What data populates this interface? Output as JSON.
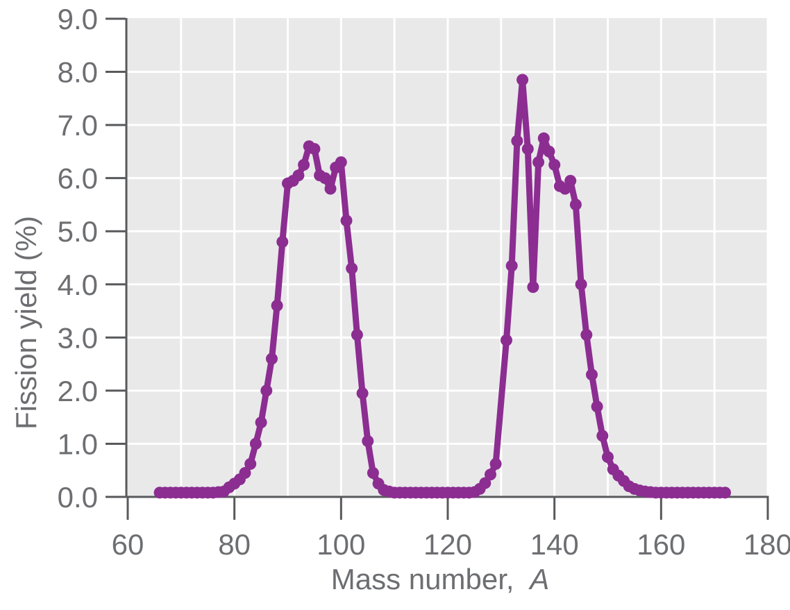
{
  "figure": {
    "xlabel_main": "Mass number,",
    "xlabel_var": "A",
    "ylabel": "Fission yield (%)",
    "x_tick_labels": [
      "60",
      "80",
      "100",
      "120",
      "140",
      "160",
      "180"
    ],
    "y_tick_labels": [
      "0.0",
      "1.0",
      "2.0",
      "3.0",
      "4.0",
      "5.0",
      "6.0",
      "7.0",
      "8.0",
      "9.0"
    ],
    "colors": {
      "curve": "#8c2d91",
      "plot_background": "#e9e9ea",
      "gridline": "#ffffff",
      "axis": "#58595b",
      "tick_label": "#6d6e71"
    }
  },
  "chart_data": {
    "type": "line",
    "title": "",
    "xlabel": "Mass number, A",
    "ylabel": "Fission yield (%)",
    "xlim": [
      60,
      180
    ],
    "ylim": [
      0,
      9.0
    ],
    "x_tick_step": 20,
    "y_tick_step": 1.0,
    "grid": true,
    "legend": false,
    "marker": "circle",
    "series": [
      {
        "name": "fission-yield-percent-vs-mass-number",
        "points": [
          [
            66,
            0.08
          ],
          [
            67,
            0.08
          ],
          [
            68,
            0.08
          ],
          [
            69,
            0.08
          ],
          [
            70,
            0.08
          ],
          [
            71,
            0.08
          ],
          [
            72,
            0.08
          ],
          [
            73,
            0.08
          ],
          [
            74,
            0.08
          ],
          [
            75,
            0.08
          ],
          [
            76,
            0.08
          ],
          [
            77,
            0.09
          ],
          [
            78,
            0.1
          ],
          [
            79,
            0.18
          ],
          [
            80,
            0.25
          ],
          [
            81,
            0.33
          ],
          [
            82,
            0.45
          ],
          [
            83,
            0.62
          ],
          [
            84,
            1.0
          ],
          [
            85,
            1.4
          ],
          [
            86,
            2.0
          ],
          [
            87,
            2.6
          ],
          [
            88,
            3.6
          ],
          [
            89,
            4.8
          ],
          [
            90,
            5.9
          ],
          [
            91,
            5.95
          ],
          [
            92,
            6.05
          ],
          [
            93,
            6.25
          ],
          [
            94,
            6.6
          ],
          [
            95,
            6.55
          ],
          [
            96,
            6.05
          ],
          [
            97,
            6.0
          ],
          [
            98,
            5.8
          ],
          [
            99,
            6.2
          ],
          [
            100,
            6.3
          ],
          [
            101,
            5.2
          ],
          [
            102,
            4.3
          ],
          [
            103,
            3.05
          ],
          [
            104,
            1.95
          ],
          [
            105,
            1.05
          ],
          [
            106,
            0.45
          ],
          [
            107,
            0.25
          ],
          [
            108,
            0.13
          ],
          [
            109,
            0.1
          ],
          [
            110,
            0.08
          ],
          [
            111,
            0.08
          ],
          [
            112,
            0.08
          ],
          [
            113,
            0.08
          ],
          [
            114,
            0.08
          ],
          [
            115,
            0.08
          ],
          [
            116,
            0.08
          ],
          [
            117,
            0.08
          ],
          [
            118,
            0.08
          ],
          [
            119,
            0.08
          ],
          [
            120,
            0.08
          ],
          [
            121,
            0.08
          ],
          [
            122,
            0.08
          ],
          [
            123,
            0.08
          ],
          [
            124,
            0.08
          ],
          [
            125,
            0.09
          ],
          [
            126,
            0.15
          ],
          [
            127,
            0.26
          ],
          [
            128,
            0.42
          ],
          [
            129,
            0.62
          ],
          [
            131,
            2.95
          ],
          [
            132,
            4.35
          ],
          [
            133,
            6.7
          ],
          [
            134,
            7.85
          ],
          [
            135,
            6.55
          ],
          [
            136,
            3.95
          ],
          [
            137,
            6.3
          ],
          [
            138,
            6.75
          ],
          [
            139,
            6.5
          ],
          [
            140,
            6.25
          ],
          [
            141,
            5.85
          ],
          [
            142,
            5.8
          ],
          [
            143,
            5.95
          ],
          [
            144,
            5.5
          ],
          [
            145,
            4.0
          ],
          [
            146,
            3.05
          ],
          [
            147,
            2.3
          ],
          [
            148,
            1.7
          ],
          [
            149,
            1.15
          ],
          [
            150,
            0.75
          ],
          [
            151,
            0.52
          ],
          [
            152,
            0.4
          ],
          [
            153,
            0.3
          ],
          [
            154,
            0.2
          ],
          [
            155,
            0.15
          ],
          [
            156,
            0.12
          ],
          [
            157,
            0.1
          ],
          [
            158,
            0.09
          ],
          [
            159,
            0.08
          ],
          [
            160,
            0.08
          ],
          [
            161,
            0.08
          ],
          [
            162,
            0.08
          ],
          [
            163,
            0.08
          ],
          [
            164,
            0.08
          ],
          [
            165,
            0.08
          ],
          [
            166,
            0.08
          ],
          [
            167,
            0.08
          ],
          [
            168,
            0.08
          ],
          [
            169,
            0.08
          ],
          [
            170,
            0.08
          ],
          [
            171,
            0.08
          ],
          [
            172,
            0.08
          ]
        ]
      }
    ]
  }
}
